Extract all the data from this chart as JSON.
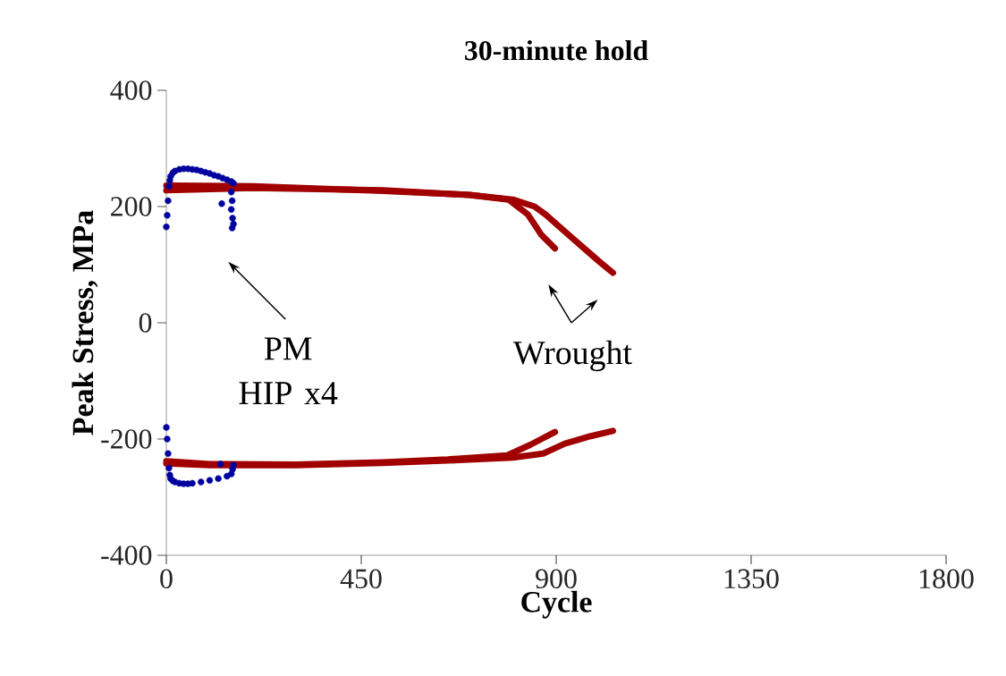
{
  "chart_data": {
    "type": "line",
    "title": "30-minute hold",
    "xlabel": "Cycle",
    "ylabel": "Peak Stress, MPa",
    "xlim": [
      0,
      1800
    ],
    "xticks": [
      0,
      450,
      900,
      1350,
      1800
    ],
    "ylim": [
      -400,
      400
    ],
    "yticks": [
      -400,
      -200,
      0,
      200,
      400
    ],
    "grid": false,
    "annotations": [
      "PM HIP x4",
      "Wrought"
    ],
    "series": [
      {
        "color": "#a00000",
        "x": [
          0,
          200,
          500,
          700,
          790,
          835,
          866,
          897
        ],
        "values": [
          228,
          232,
          228,
          220,
          212,
          186,
          151,
          128
        ]
      },
      {
        "color": "#a00000",
        "x": [
          0,
          200,
          500,
          700,
          800,
          850,
          876,
          938,
          1000,
          1031
        ],
        "values": [
          236,
          235,
          227,
          220,
          212,
          200,
          186,
          145,
          105,
          86
        ]
      },
      {
        "color": "#a00000",
        "x": [
          0,
          100,
          300,
          500,
          650,
          787,
          840,
          897
        ],
        "values": [
          -238,
          -243,
          -244,
          -240,
          -235,
          -228,
          -210,
          -188
        ]
      },
      {
        "color": "#a00000",
        "x": [
          0,
          100,
          300,
          500,
          650,
          800,
          870,
          920,
          980,
          1031
        ],
        "values": [
          -242,
          -245,
          -245,
          -241,
          -237,
          -232,
          -225,
          -208,
          -195,
          -186
        ]
      },
      {
        "type": "scatter",
        "marker": "circle",
        "color": "#0000a0",
        "x": [
          0,
          2,
          4,
          6,
          8,
          10,
          15,
          20,
          30,
          40,
          50,
          60,
          70,
          80,
          90,
          100,
          110,
          120,
          130,
          140,
          150,
          155,
          150,
          152,
          150,
          153,
          155,
          152,
          128
        ],
        "values": [
          165,
          185,
          210,
          235,
          245,
          252,
          258,
          261,
          264,
          265,
          265,
          264,
          263,
          261,
          259,
          257,
          254,
          252,
          249,
          246,
          243,
          240,
          225,
          210,
          195,
          180,
          170,
          163,
          205
        ]
      },
      {
        "type": "scatter",
        "marker": "circle",
        "color": "#0000a0",
        "x": [
          0,
          2,
          4,
          6,
          8,
          10,
          15,
          20,
          30,
          40,
          50,
          60,
          80,
          100,
          120,
          140,
          150,
          153,
          155,
          125
        ],
        "values": [
          -180,
          -200,
          -225,
          -250,
          -262,
          -268,
          -272,
          -274,
          -276,
          -277,
          -277,
          -276,
          -274,
          -271,
          -268,
          -264,
          -260,
          -252,
          -245,
          -243
        ]
      }
    ]
  }
}
